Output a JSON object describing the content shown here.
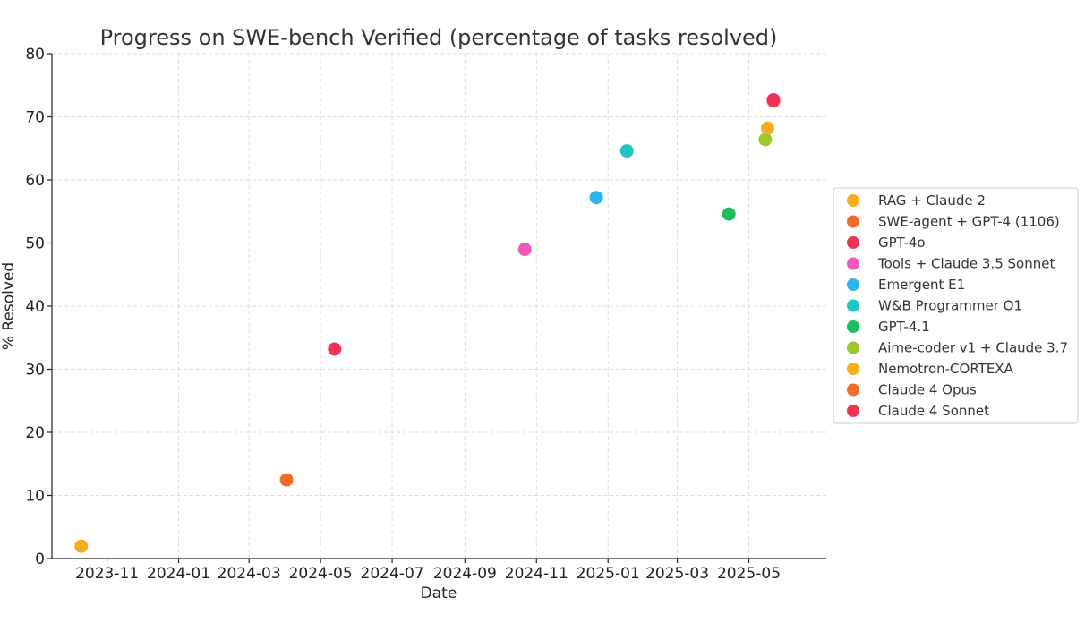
{
  "chart_data": {
    "type": "scatter",
    "title": "Progress on SWE-bench Verified (percentage of tasks resolved)",
    "xlabel": "Date",
    "ylabel": "% Resolved",
    "xlim": [
      "2023-09-15",
      "2025-07-06"
    ],
    "ylim": [
      0,
      80
    ],
    "x_ticks": [
      "2023-11",
      "2024-01",
      "2024-03",
      "2024-05",
      "2024-07",
      "2024-09",
      "2024-11",
      "2025-01",
      "2025-03",
      "2025-05"
    ],
    "y_ticks": [
      0,
      10,
      20,
      30,
      40,
      50,
      60,
      70,
      80
    ],
    "grid": true,
    "legend_position": "right",
    "series": [
      {
        "name": "RAG + Claude 2",
        "color": "#F7AE1A",
        "x": "2023-10-10",
        "y": 1.96
      },
      {
        "name": "SWE-agent + GPT-4 (1106)",
        "color": "#F26B2A",
        "x": "2024-04-02",
        "y": 12.47
      },
      {
        "name": "GPT-4o",
        "color": "#EE3355",
        "x": "2024-05-13",
        "y": 33.2
      },
      {
        "name": "Tools + Claude 3.5 Sonnet",
        "color": "#EE5BB7",
        "x": "2024-10-22",
        "y": 49.0
      },
      {
        "name": "Emergent E1",
        "color": "#2DB3EE",
        "x": "2024-12-22",
        "y": 57.2
      },
      {
        "name": "W&B Programmer O1",
        "color": "#20C7C2",
        "x": "2025-01-17",
        "y": 64.6
      },
      {
        "name": "GPT-4.1",
        "color": "#1DBE5E",
        "x": "2025-04-14",
        "y": 54.6
      },
      {
        "name": "Aime-coder v1 + Claude 3.7",
        "color": "#9ACB2B",
        "x": "2025-05-15",
        "y": 66.4
      },
      {
        "name": "Nemotron-CORTEXA",
        "color": "#F7AE1A",
        "x": "2025-05-17",
        "y": 68.2
      },
      {
        "name": "Claude 4 Opus",
        "color": "#F26B2A",
        "x": "2025-05-22",
        "y": 72.5
      },
      {
        "name": "Claude 4 Sonnet",
        "color": "#EE3355",
        "x": "2025-05-22",
        "y": 72.7
      }
    ]
  }
}
